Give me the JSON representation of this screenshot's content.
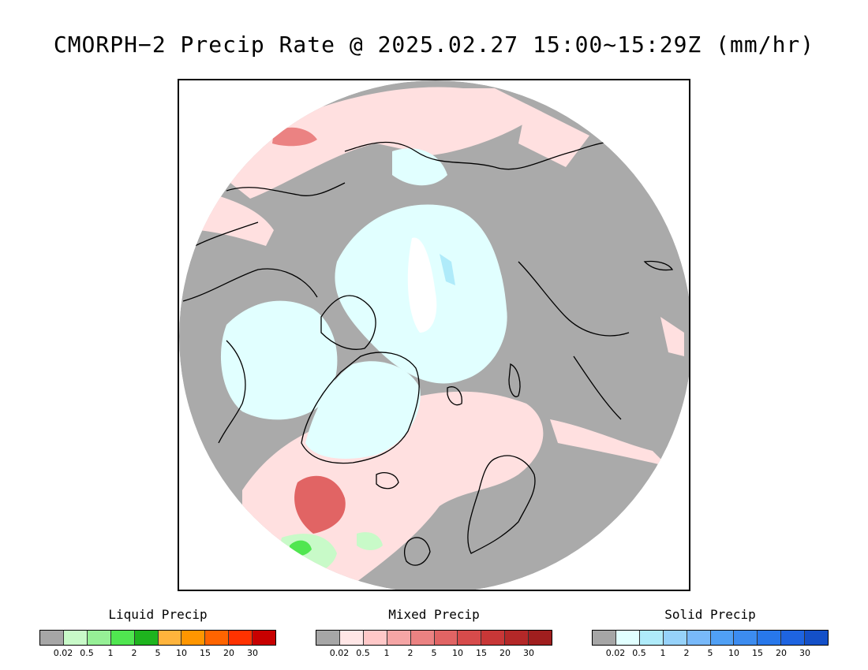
{
  "title": "CMORPH−2 Precip Rate @ 2025.02.27 15:00~15:29Z (mm/hr)",
  "map": {
    "background_color": "#aaaaaa",
    "coastline_color": "#000000"
  },
  "legends": [
    {
      "title": "Liquid Precip",
      "colors": [
        "#a6a6a6",
        "#c8fac8",
        "#96f096",
        "#50e650",
        "#1eb41e",
        "#ffb43c",
        "#ff9600",
        "#ff6400",
        "#ff3200",
        "#c80000"
      ],
      "ticks": [
        "0.02",
        "0.5",
        "1",
        "2",
        "5",
        "10",
        "15",
        "20",
        "30"
      ]
    },
    {
      "title": "Mixed Precip",
      "colors": [
        "#a6a6a6",
        "#ffe6e6",
        "#ffc8c8",
        "#f5a5a5",
        "#eb8282",
        "#e16464",
        "#d74b4b",
        "#c83737",
        "#b42828",
        "#a01e1e"
      ],
      "ticks": [
        "0.02",
        "0.5",
        "1",
        "2",
        "5",
        "10",
        "15",
        "20",
        "30"
      ]
    },
    {
      "title": "Solid Precip",
      "colors": [
        "#a6a6a6",
        "#e1ffff",
        "#afebfa",
        "#96d2fa",
        "#78b9fa",
        "#50a0f5",
        "#3c8cf0",
        "#2878eb",
        "#1e64e1",
        "#1450c8"
      ],
      "ticks": [
        "0.02",
        "0.5",
        "1",
        "2",
        "5",
        "10",
        "15",
        "20",
        "30"
      ]
    }
  ]
}
